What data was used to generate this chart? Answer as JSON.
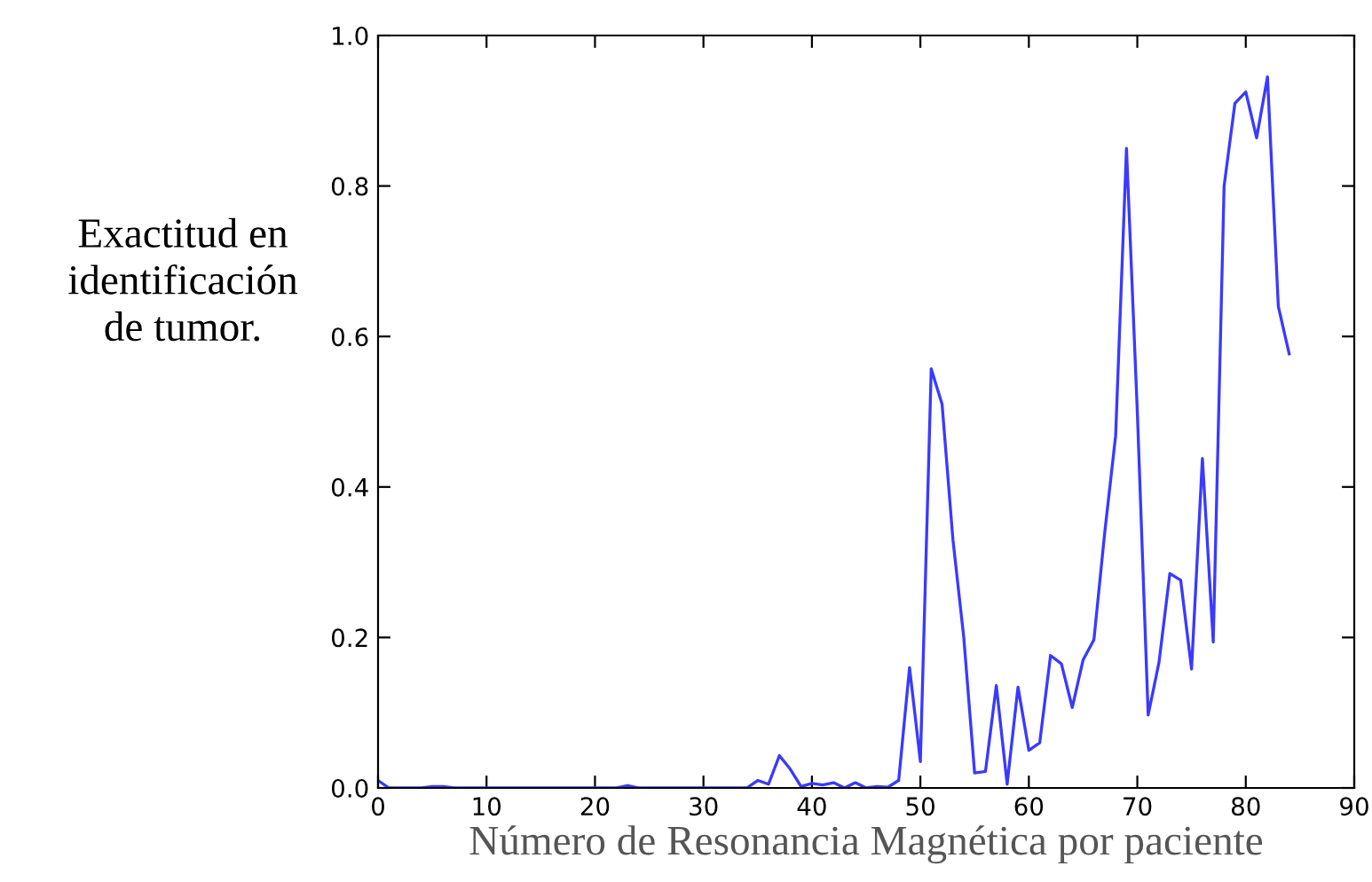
{
  "chart_data": {
    "type": "line",
    "xlabel": "Número de Resonancia Magnética por paciente",
    "ylabel": "Exactitud en\nidentificación\nde tumor.",
    "x": [
      0,
      1,
      2,
      3,
      4,
      5,
      6,
      7,
      8,
      9,
      10,
      11,
      12,
      13,
      14,
      15,
      16,
      17,
      18,
      19,
      20,
      21,
      22,
      23,
      24,
      25,
      26,
      27,
      28,
      29,
      30,
      31,
      32,
      33,
      34,
      35,
      36,
      37,
      38,
      39,
      40,
      41,
      42,
      43,
      44,
      45,
      46,
      47,
      48,
      49,
      50,
      51,
      52,
      53,
      54,
      55,
      56,
      57,
      58,
      59,
      60,
      61,
      62,
      63,
      64,
      65,
      66,
      67,
      68,
      69,
      70,
      71,
      72,
      73,
      74,
      75,
      76,
      77,
      78,
      79,
      80,
      81,
      82,
      83,
      84
    ],
    "series": [
      {
        "color": "#3a3aff",
        "values": [
          0.01,
          0,
          0,
          0,
          0,
          0.002,
          0.002,
          0,
          0,
          0,
          0,
          0,
          0,
          0,
          0,
          0,
          0,
          0,
          0,
          0,
          0,
          0,
          0,
          0.003,
          0,
          0,
          0,
          0,
          0,
          0,
          0,
          0,
          0,
          0,
          0,
          0.01,
          0.005,
          0.043,
          0.025,
          0.002,
          0.006,
          0.004,
          0.007,
          0,
          0.007,
          0,
          0.002,
          0.001,
          0.01,
          0.16,
          0.035,
          0.557,
          0.51,
          0.33,
          0.2,
          0.02,
          0.022,
          0.136,
          0.005,
          0.134,
          0.05,
          0.06,
          0.176,
          0.165,
          0.107,
          0.17,
          0.197,
          0.34,
          0.468,
          0.85,
          0.5,
          0.097,
          0.167,
          0.285,
          0.276,
          0.158,
          0.438,
          0.194,
          0.8,
          0.91,
          0.925,
          0.864,
          0.945,
          0.64,
          0.577
        ]
      }
    ],
    "xlim": [
      0,
      90
    ],
    "xticks": [
      0,
      10,
      20,
      30,
      40,
      50,
      60,
      70,
      80,
      90
    ],
    "ylim": [
      0,
      1
    ],
    "yticks": [
      {
        "value": 0,
        "label": "0.0"
      },
      0.2,
      0.4,
      0.6,
      0.8,
      {
        "value": 1,
        "label": "1.0"
      }
    ],
    "grid": false,
    "legend": false,
    "marker": "none",
    "line_style": "solid"
  }
}
